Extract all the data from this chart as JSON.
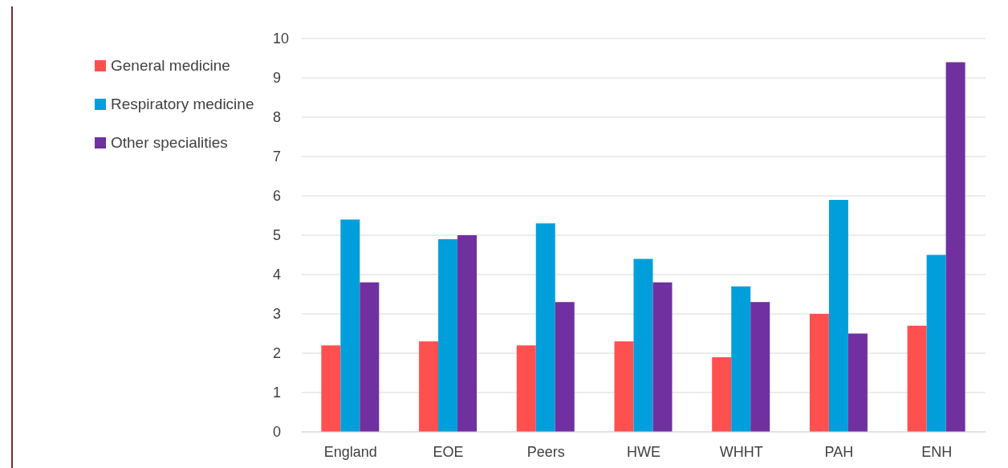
{
  "chart_data": {
    "type": "bar",
    "categories": [
      "England",
      "EOE",
      "Peers",
      "HWE",
      "WHHT",
      "PAH",
      "ENH"
    ],
    "series": [
      {
        "name": "General medicine",
        "color": "#ff5050",
        "values": [
          2.2,
          2.3,
          2.2,
          2.3,
          1.9,
          3.0,
          2.7
        ]
      },
      {
        "name": "Respiratory medicine",
        "color": "#009fdb",
        "values": [
          5.4,
          4.9,
          5.3,
          4.4,
          3.7,
          5.9,
          4.5
        ]
      },
      {
        "name": "Other specialities",
        "color": "#7030a0",
        "values": [
          3.8,
          5.0,
          3.3,
          3.8,
          3.3,
          2.5,
          9.4
        ]
      }
    ],
    "ylim": [
      0,
      10
    ],
    "yticks": [
      0,
      1,
      2,
      3,
      4,
      5,
      6,
      7,
      8,
      9,
      10
    ],
    "grid": "y",
    "legend": "top left"
  }
}
